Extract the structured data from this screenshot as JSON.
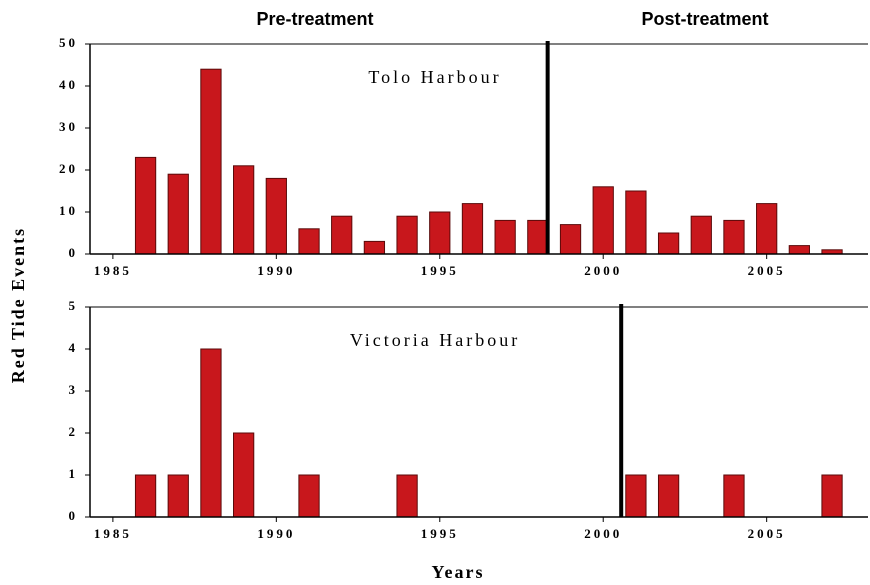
{
  "headers": [
    "Pre-treatment",
    "Post-treatment"
  ],
  "y_label": "Red Tide Events",
  "x_label": "Years",
  "chart_data": [
    {
      "type": "bar",
      "annotation": "Tolo Harbour",
      "x": [
        1986,
        1987,
        1988,
        1989,
        1990,
        1991,
        1992,
        1993,
        1994,
        1995,
        1996,
        1997,
        1998,
        1999,
        2000,
        2001,
        2002,
        2003,
        2004,
        2005,
        2006,
        2007
      ],
      "values": [
        23,
        19,
        44,
        21,
        18,
        6,
        9,
        3,
        9,
        10,
        12,
        8,
        8,
        7,
        16,
        15,
        5,
        9,
        8,
        12,
        2,
        1
      ],
      "color": "#c8171c",
      "xlim": [
        1984.3,
        2008.1
      ],
      "xticks": [
        1985,
        1990,
        1995,
        2000,
        2005
      ],
      "ylim": [
        0,
        50
      ],
      "yticks": [
        0,
        10,
        20,
        30,
        40,
        50
      ],
      "treatment_x": 1998.3
    },
    {
      "type": "bar",
      "annotation": "Victoria Harbour",
      "x": [
        1986,
        1987,
        1988,
        1989,
        1991,
        1994,
        2001,
        2002,
        2004,
        2007
      ],
      "values": [
        1,
        1,
        4,
        2,
        1,
        1,
        1,
        1,
        1,
        1
      ],
      "color": "#c8171c",
      "xlim": [
        1984.3,
        2008.1
      ],
      "xticks": [
        1985,
        1990,
        1995,
        2000,
        2005
      ],
      "ylim": [
        0,
        5
      ],
      "yticks": [
        0,
        1,
        2,
        3,
        4,
        5
      ],
      "treatment_x": 2000.55
    }
  ]
}
